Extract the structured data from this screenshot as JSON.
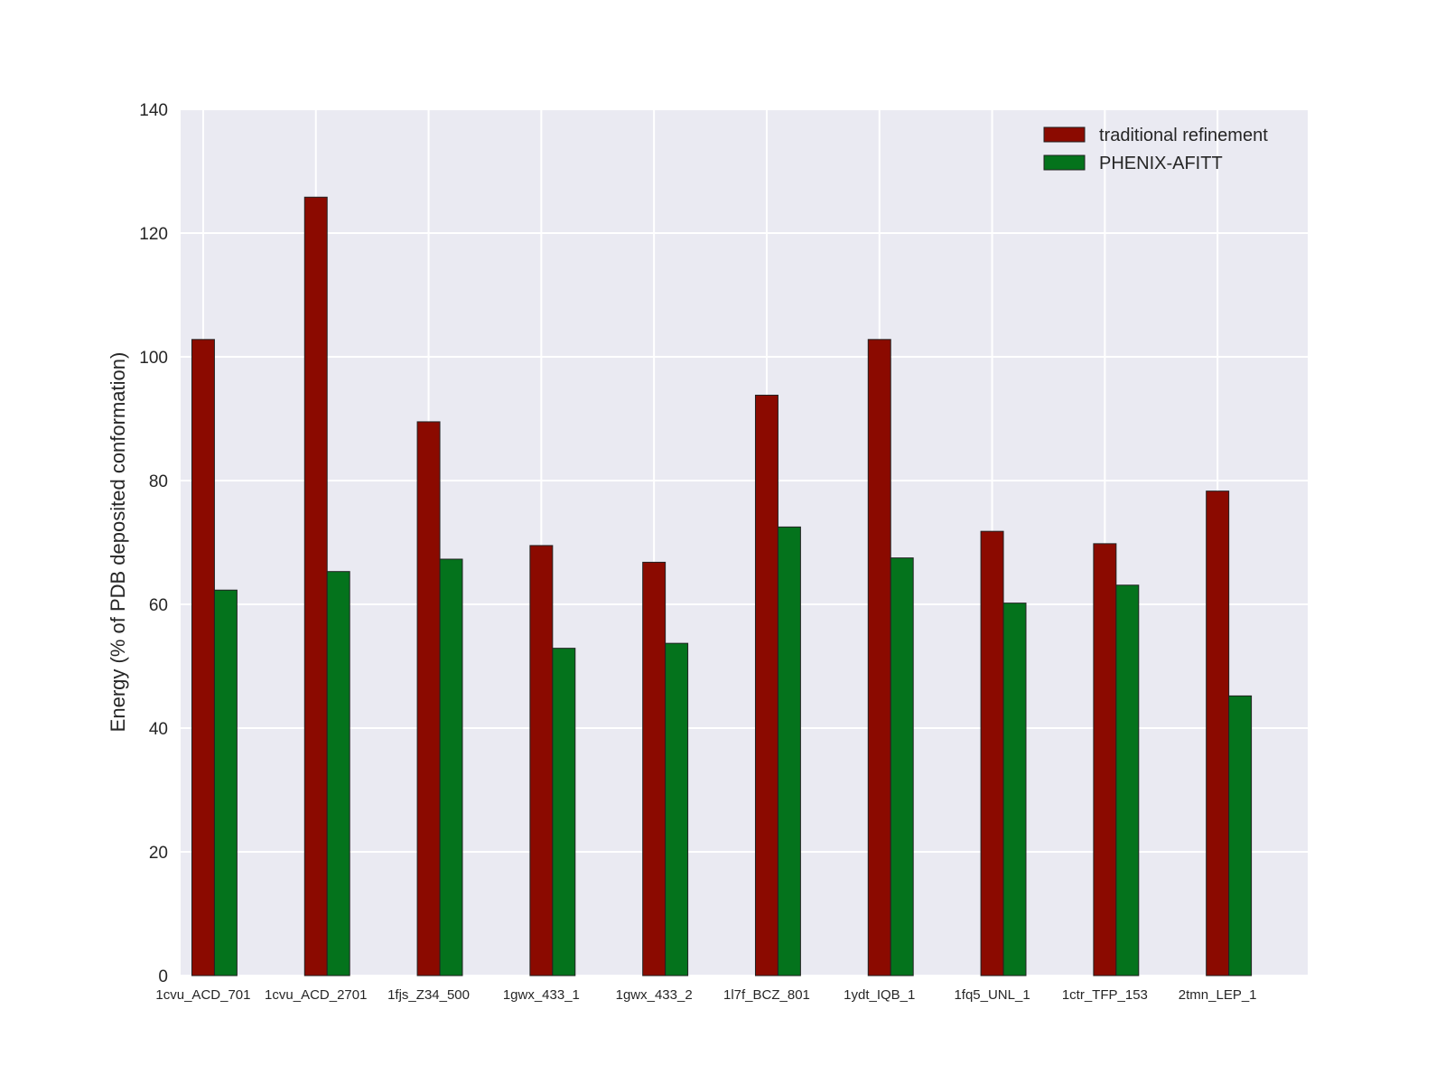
{
  "chart_data": {
    "type": "bar",
    "title": "",
    "xlabel": "",
    "ylabel": "Energy (% of PDB deposited conformation)",
    "ylim": [
      0,
      140
    ],
    "yticks": [
      0,
      20,
      40,
      60,
      80,
      100,
      120,
      140
    ],
    "grid": true,
    "legend_placement": "top-right",
    "categories": [
      "1cvu_ACD_701",
      "1cvu_ACD_2701",
      "1fjs_Z34_500",
      "1gwx_433_1",
      "1gwx_433_2",
      "1l7f_BCZ_801",
      "1ydt_IQB_1",
      "1fq5_UNL_1",
      "1ctr_TFP_153",
      "2tmn_LEP_1"
    ],
    "series": [
      {
        "name": "traditional refinement",
        "color": "#8b0a00",
        "values": [
          102.8,
          125.8,
          89.5,
          69.5,
          66.8,
          93.8,
          102.8,
          71.8,
          69.8,
          78.3
        ]
      },
      {
        "name": "PHENIX-AFITT",
        "color": "#04731c",
        "values": [
          62.3,
          65.3,
          67.3,
          52.9,
          53.7,
          72.5,
          67.5,
          60.2,
          63.1,
          45.2
        ]
      }
    ],
    "background_color": "#eaeaf2"
  }
}
